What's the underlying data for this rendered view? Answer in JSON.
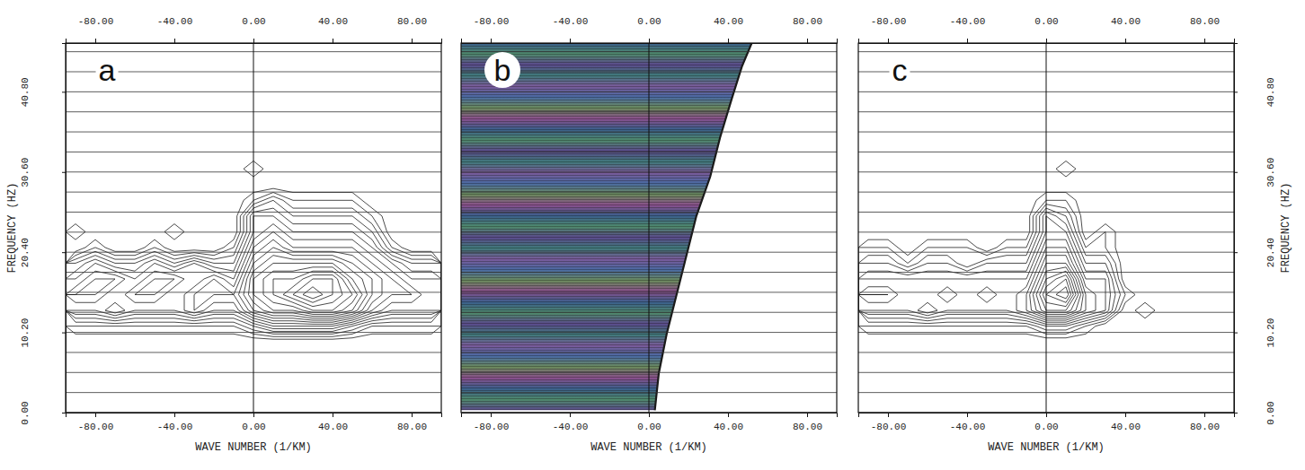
{
  "chart_data": [
    {
      "type": "contour",
      "title": "a",
      "xlabel": "WAVE NUMBER (1/KM)",
      "ylabel": "FREQUENCY (HZ)",
      "xlim": [
        -95,
        95
      ],
      "ylim": [
        0,
        47
      ],
      "xticks": [
        {
          "value": -80,
          "label": "-80.00"
        },
        {
          "value": -40,
          "label": "-40.00"
        },
        {
          "value": 0,
          "label": "0.00"
        },
        {
          "value": 40,
          "label": "40.00"
        },
        {
          "value": 80,
          "label": "80.00"
        }
      ],
      "yticks": [
        {
          "value": 0,
          "label": "0.00"
        },
        {
          "value": 10.2,
          "label": "10.20"
        },
        {
          "value": 20.4,
          "label": "20.40"
        },
        {
          "value": 30.6,
          "label": "30.60"
        },
        {
          "value": 40.8,
          "label": "40.80"
        }
      ],
      "minor_yticks": [
        2.55,
        5.1,
        7.65,
        12.75,
        15.3,
        17.85,
        22.95,
        25.5,
        28.05,
        33.15,
        35.7,
        38.25,
        43.35,
        45.9
      ],
      "tick_labels": true,
      "grid": true,
      "xref": [
        0
      ],
      "x": [
        -90,
        -80,
        -70,
        -60,
        -50,
        -40,
        -30,
        -20,
        -10,
        0,
        10,
        20,
        30,
        40,
        50,
        60,
        70,
        80,
        90
      ],
      "y": [
        9,
        11,
        13,
        15,
        17,
        19,
        21,
        23,
        25,
        27,
        29,
        31
      ],
      "z": [
        [
          0,
          0,
          0,
          0,
          0,
          0,
          0,
          0,
          0,
          0,
          0,
          0,
          0,
          0,
          0,
          0,
          0,
          0,
          0
        ],
        [
          1,
          1,
          1,
          1,
          1,
          1,
          1,
          1,
          1,
          2,
          3,
          3,
          3,
          3,
          2,
          1,
          1,
          1,
          1
        ],
        [
          3,
          3,
          4,
          3,
          3,
          3,
          4,
          3,
          3,
          5,
          6,
          6,
          7,
          7,
          6,
          4,
          3,
          3,
          3
        ],
        [
          4,
          4,
          3,
          4,
          4,
          3,
          4,
          4,
          4,
          6,
          7,
          8,
          9,
          8,
          7,
          5,
          4,
          4,
          3
        ],
        [
          3,
          4,
          4,
          3,
          4,
          4,
          3,
          4,
          3,
          6,
          7,
          7,
          8,
          8,
          6,
          5,
          4,
          3,
          3
        ],
        [
          2,
          3,
          2,
          2,
          3,
          2,
          3,
          2,
          2,
          5,
          6,
          6,
          6,
          6,
          5,
          4,
          3,
          2,
          2
        ],
        [
          0,
          1,
          0,
          0,
          1,
          0,
          0,
          0,
          1,
          4,
          5,
          4,
          4,
          4,
          4,
          3,
          1,
          0,
          0
        ],
        [
          1,
          0,
          0,
          0,
          0,
          1,
          0,
          0,
          0,
          3,
          4,
          3,
          3,
          3,
          3,
          2,
          0,
          0,
          0
        ],
        [
          0,
          0,
          0,
          0,
          0,
          0,
          0,
          0,
          0,
          3,
          3,
          2,
          2,
          2,
          2,
          1,
          0,
          0,
          0
        ],
        [
          0,
          0,
          0,
          0,
          0,
          0,
          0,
          0,
          0,
          1,
          2,
          1,
          1,
          1,
          1,
          0,
          0,
          0,
          0
        ],
        [
          0,
          0,
          0,
          0,
          0,
          0,
          0,
          0,
          0,
          0,
          0,
          0,
          0,
          0,
          0,
          0,
          0,
          0,
          0
        ],
        [
          0,
          0,
          0,
          0,
          0,
          0,
          0,
          0,
          0,
          1,
          0,
          0,
          0,
          0,
          0,
          0,
          0,
          0,
          0
        ]
      ],
      "levels": [
        0.5,
        1,
        1.5,
        2,
        2.5,
        3,
        3.5,
        4,
        4.5,
        5,
        5.5,
        6,
        6.5,
        7,
        7.5,
        8,
        8.5,
        9
      ]
    },
    {
      "type": "area",
      "title": "b",
      "xlabel": "WAVE NUMBER (1/KM)",
      "xlim": [
        -95,
        95
      ],
      "ylim": [
        0,
        47
      ],
      "xticks": [
        {
          "value": -80,
          "label": "-80.00"
        },
        {
          "value": -40,
          "label": "-40.00"
        },
        {
          "value": 0,
          "label": "0.00"
        },
        {
          "value": 40,
          "label": "40.00"
        },
        {
          "value": 80,
          "label": "80.00"
        }
      ],
      "yticks": [
        0,
        10.2,
        20.4,
        30.6,
        40.8
      ],
      "minor_yticks": [
        2.55,
        5.1,
        7.65,
        12.75,
        15.3,
        17.85,
        22.95,
        25.5,
        28.05,
        33.15,
        35.7,
        38.25,
        43.35,
        45.9
      ],
      "tick_labels": "x",
      "grid": true,
      "xref": [
        0
      ],
      "boundary": {
        "x": [
          3,
          5,
          9,
          14,
          19,
          24,
          31,
          36,
          42,
          47,
          52
        ],
        "y": [
          0.3,
          5,
          10,
          15,
          20,
          25,
          30,
          35,
          40,
          44,
          47
        ]
      },
      "colors": [
        "#5b4a8c",
        "#4f8a6c",
        "#3b5f8c",
        "#8a4f8c",
        "#6a8a5c",
        "#4a6aa2",
        "#7a5a9a",
        "#3f7a7a"
      ]
    },
    {
      "type": "contour",
      "title": "c",
      "xlabel": "WAVE NUMBER (1/KM)",
      "ylabel": "FREQUENCY (HZ)",
      "xlim": [
        -95,
        95
      ],
      "ylim": [
        0,
        47
      ],
      "xticks": [
        {
          "value": -80,
          "label": "-80.00"
        },
        {
          "value": -40,
          "label": "-40.00"
        },
        {
          "value": 0,
          "label": "0.00"
        },
        {
          "value": 40,
          "label": "40.00"
        },
        {
          "value": 80,
          "label": "80.00"
        }
      ],
      "yticks": [
        {
          "value": 0,
          "label": "0.00"
        },
        {
          "value": 10.2,
          "label": "10.20"
        },
        {
          "value": 20.4,
          "label": "20.40"
        },
        {
          "value": 30.6,
          "label": "30.60"
        },
        {
          "value": 40.8,
          "label": "40.80"
        }
      ],
      "minor_yticks": [
        2.55,
        5.1,
        7.65,
        12.75,
        15.3,
        17.85,
        22.95,
        25.5,
        28.05,
        33.15,
        35.7,
        38.25,
        43.35,
        45.9
      ],
      "tick_labels": true,
      "grid": true,
      "xref": [
        0
      ],
      "x": [
        -90,
        -80,
        -70,
        -60,
        -50,
        -40,
        -30,
        -20,
        -10,
        0,
        10,
        20,
        30,
        40,
        50,
        60,
        70,
        80,
        90
      ],
      "y": [
        9,
        11,
        13,
        15,
        17,
        19,
        21,
        23,
        25,
        27,
        29,
        31
      ],
      "z": [
        [
          0,
          0,
          0,
          0,
          0,
          0,
          0,
          0,
          0,
          0,
          0,
          0,
          0,
          0,
          0,
          0,
          0,
          0,
          0
        ],
        [
          1,
          1,
          1,
          1,
          1,
          1,
          1,
          1,
          1,
          2,
          2,
          1,
          0,
          0,
          0,
          0,
          0,
          0,
          0
        ],
        [
          3,
          3,
          3,
          4,
          3,
          3,
          3,
          3,
          4,
          6,
          6,
          4,
          3,
          0,
          1,
          0,
          0,
          0,
          0
        ],
        [
          4,
          4,
          3,
          3,
          4,
          3,
          4,
          3,
          4,
          7,
          8,
          4,
          3,
          1,
          0,
          0,
          0,
          0,
          0
        ],
        [
          3,
          3,
          3,
          3,
          3,
          3,
          3,
          3,
          3,
          6,
          7,
          3,
          3,
          0,
          0,
          0,
          0,
          0,
          0
        ],
        [
          2,
          2,
          1,
          2,
          2,
          1,
          2,
          2,
          2,
          5,
          5,
          2,
          2,
          0,
          0,
          0,
          0,
          0,
          0
        ],
        [
          1,
          1,
          0,
          1,
          1,
          1,
          0,
          1,
          1,
          4,
          4,
          1,
          1,
          0,
          0,
          0,
          0,
          0,
          0
        ],
        [
          0,
          0,
          0,
          0,
          0,
          0,
          0,
          0,
          0,
          3,
          3,
          0,
          1,
          0,
          0,
          0,
          0,
          0,
          0
        ],
        [
          0,
          0,
          0,
          0,
          0,
          0,
          0,
          0,
          0,
          3,
          2,
          0,
          0,
          0,
          0,
          0,
          0,
          0,
          0
        ],
        [
          0,
          0,
          0,
          0,
          0,
          0,
          0,
          0,
          0,
          1,
          1,
          0,
          0,
          0,
          0,
          0,
          0,
          0,
          0
        ],
        [
          0,
          0,
          0,
          0,
          0,
          0,
          0,
          0,
          0,
          0,
          0,
          0,
          0,
          0,
          0,
          0,
          0,
          0,
          0
        ],
        [
          0,
          0,
          0,
          0,
          0,
          0,
          0,
          0,
          0,
          0,
          1,
          0,
          0,
          0,
          0,
          0,
          0,
          0,
          0
        ]
      ],
      "levels": [
        0.5,
        1,
        1.5,
        2,
        2.5,
        3,
        3.5,
        4,
        4.5,
        5,
        5.5,
        6,
        6.5,
        7,
        7.5,
        8,
        8.5,
        9
      ]
    }
  ]
}
